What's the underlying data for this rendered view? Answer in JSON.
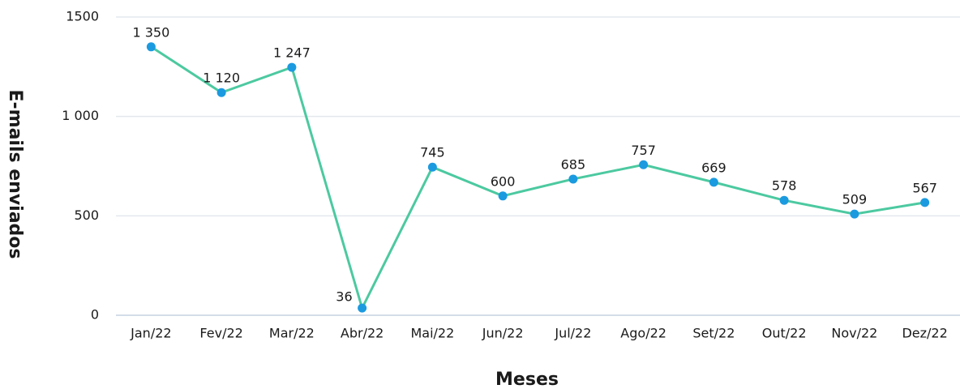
{
  "chart_data": {
    "type": "line",
    "x_label": "Meses",
    "y_label": "E-mails enviados",
    "categories": [
      "Jan/22",
      "Fev/22",
      "Mar/22",
      "Abr/22",
      "Mai/22",
      "Jun/22",
      "Jul/22",
      "Ago/22",
      "Set/22",
      "Out/22",
      "Nov/22",
      "Dez/22"
    ],
    "series": [
      {
        "name": "E-mails enviados",
        "color": "#4cc9a0",
        "marker_color": "#1b9ae0",
        "values": [
          1350,
          1120,
          1247,
          36,
          745,
          600,
          685,
          757,
          669,
          578,
          509,
          567
        ],
        "value_labels": [
          "1 350",
          "1 120",
          "1 247",
          "36",
          "745",
          "600",
          "685",
          "757",
          "669",
          "578",
          "509",
          "567"
        ]
      }
    ],
    "ylim": [
      0,
      1500
    ],
    "yticks": [
      0,
      500,
      {
        "value": 1000,
        "label": "1 000"
      },
      1500
    ],
    "grid": true
  }
}
